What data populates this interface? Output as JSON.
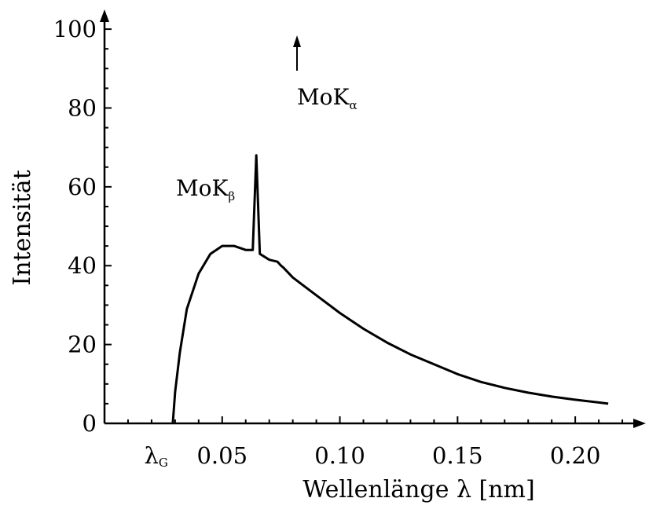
{
  "chart_data": {
    "type": "line",
    "title": "",
    "xlabel": "Wellenlänge λ [nm]",
    "ylabel": "Intensität",
    "xlim": [
      0.0,
      0.23
    ],
    "ylim": [
      0,
      105
    ],
    "x_ticks": [
      0.05,
      0.1,
      0.15,
      0.2
    ],
    "x_tick_labels": [
      "0.05",
      "0.10",
      "0.15",
      "0.20"
    ],
    "y_ticks": [
      0,
      20,
      40,
      60,
      80,
      100
    ],
    "y_tick_labels": [
      "0",
      "20",
      "40",
      "60",
      "80",
      "100"
    ],
    "grid": false,
    "legend": "none",
    "colors": {
      "line": "#000000",
      "background": "#ffffff"
    },
    "series": [
      {
        "x": [
          0.029,
          0.03,
          0.032,
          0.035,
          0.04,
          0.045,
          0.05,
          0.055,
          0.06,
          0.063,
          0.0645,
          0.066,
          0.07,
          0.0735,
          0.075,
          0.076,
          0.08,
          0.09,
          0.1,
          0.11,
          0.12,
          0.13,
          0.14,
          0.15,
          0.16,
          0.17,
          0.18,
          0.19,
          0.2,
          0.21,
          0.214
        ],
        "y": [
          0,
          8,
          18,
          29,
          38,
          43,
          45,
          45,
          44,
          44,
          68,
          43,
          41.5,
          41,
          40,
          39.5,
          37,
          32.5,
          28,
          24,
          20.5,
          17.5,
          15,
          12.5,
          10.5,
          9,
          7.8,
          6.8,
          6,
          5.3,
          5
        ]
      }
    ],
    "peaks": [
      {
        "label": "MoK",
        "subscript": "β",
        "x": 0.0645,
        "y": 68
      },
      {
        "label": "MoK",
        "subscript": "α",
        "x": 0.0735,
        "y": 105,
        "arrow": "up"
      }
    ],
    "lambda_g": {
      "label": "λ",
      "subscript": "G",
      "x": 0.029
    }
  }
}
